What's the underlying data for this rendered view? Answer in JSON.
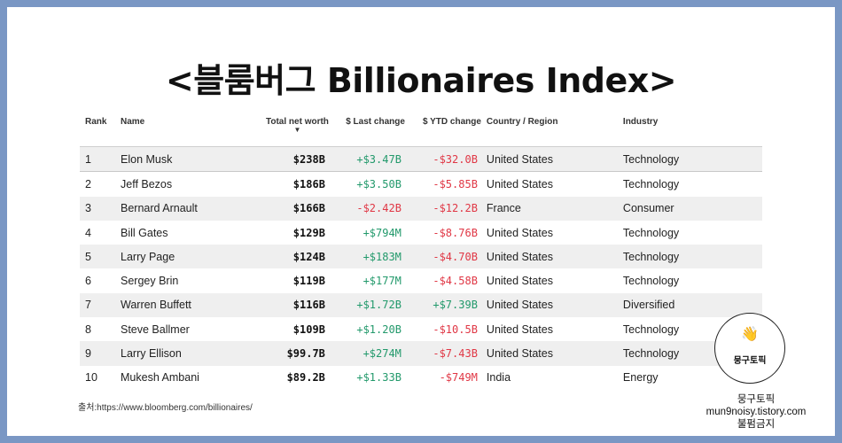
{
  "title": "<블룸버그 Billionaires Index>",
  "table": {
    "headers": [
      "Rank",
      "Name",
      "Total net worth",
      "$ Last change",
      "$ YTD change",
      "Country / Region",
      "Industry"
    ],
    "sort_arrow": "▼",
    "rows": [
      {
        "rank": "1",
        "name": "Elon Musk",
        "net_worth": "$238B",
        "last_change": "+$3.47B",
        "ytd_change": "-$32.0B",
        "country": "United States",
        "industry": "Technology"
      },
      {
        "rank": "2",
        "name": "Jeff Bezos",
        "net_worth": "$186B",
        "last_change": "+$3.50B",
        "ytd_change": "-$5.85B",
        "country": "United States",
        "industry": "Technology"
      },
      {
        "rank": "3",
        "name": "Bernard Arnault",
        "net_worth": "$166B",
        "last_change": "-$2.42B",
        "ytd_change": "-$12.2B",
        "country": "France",
        "industry": "Consumer"
      },
      {
        "rank": "4",
        "name": "Bill Gates",
        "net_worth": "$129B",
        "last_change": "+$794M",
        "ytd_change": "-$8.76B",
        "country": "United States",
        "industry": "Technology"
      },
      {
        "rank": "5",
        "name": "Larry Page",
        "net_worth": "$124B",
        "last_change": "+$183M",
        "ytd_change": "-$4.70B",
        "country": "United States",
        "industry": "Technology"
      },
      {
        "rank": "6",
        "name": "Sergey Brin",
        "net_worth": "$119B",
        "last_change": "+$177M",
        "ytd_change": "-$4.58B",
        "country": "United States",
        "industry": "Technology"
      },
      {
        "rank": "7",
        "name": "Warren Buffett",
        "net_worth": "$116B",
        "last_change": "+$1.72B",
        "ytd_change": "+$7.39B",
        "country": "United States",
        "industry": "Diversified"
      },
      {
        "rank": "8",
        "name": "Steve Ballmer",
        "net_worth": "$109B",
        "last_change": "+$1.20B",
        "ytd_change": "-$10.5B",
        "country": "United States",
        "industry": "Technology"
      },
      {
        "rank": "9",
        "name": "Larry Ellison",
        "net_worth": "$99.7B",
        "last_change": "+$274M",
        "ytd_change": "-$7.43B",
        "country": "United States",
        "industry": "Technology"
      },
      {
        "rank": "10",
        "name": "Mukesh Ambani",
        "net_worth": "$89.2B",
        "last_change": "+$1.33B",
        "ytd_change": "-$749M",
        "country": "India",
        "industry": "Energy"
      }
    ]
  },
  "source": "출처:https://www.bloomberg.com/billionaires/",
  "logo": {
    "icon": "hand-wave-icon",
    "glyph": "👋",
    "text": "뭉구토픽"
  },
  "credit": {
    "line1": "뭉구토픽",
    "line2": "mun9noisy.tistory.com",
    "line3": "불펌금지"
  },
  "colors": {
    "frame": "#7a97c4",
    "positive": "#22996b",
    "negative": "#e03745",
    "row_shade": "#efefef"
  }
}
